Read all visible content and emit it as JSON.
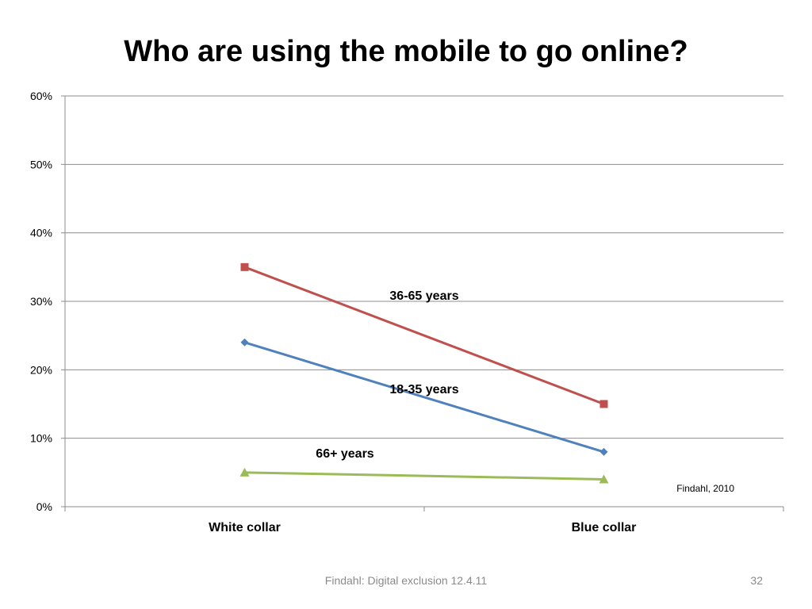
{
  "slide": {
    "title": "Who are using the mobile to go online?",
    "footer": "Findahl: Digital exclusion 12.4.11",
    "page_number": "32"
  },
  "chart_data": {
    "type": "line",
    "categories": [
      "White collar",
      "Blue collar"
    ],
    "y_ticks": [
      "0%",
      "10%",
      "20%",
      "30%",
      "40%",
      "50%",
      "60%"
    ],
    "ylim": [
      0,
      60
    ],
    "grid": true,
    "series": [
      {
        "name": "36-65 years",
        "values": [
          35,
          15
        ],
        "color": "#c0504d",
        "marker": "square"
      },
      {
        "name": "18-35 years",
        "values": [
          24,
          8
        ],
        "color": "#4f81bd",
        "marker": "diamond"
      },
      {
        "name": "66+ years",
        "values": [
          5,
          4
        ],
        "color": "#9bbb59",
        "marker": "triangle"
      }
    ],
    "source": "Findahl, 2010"
  }
}
